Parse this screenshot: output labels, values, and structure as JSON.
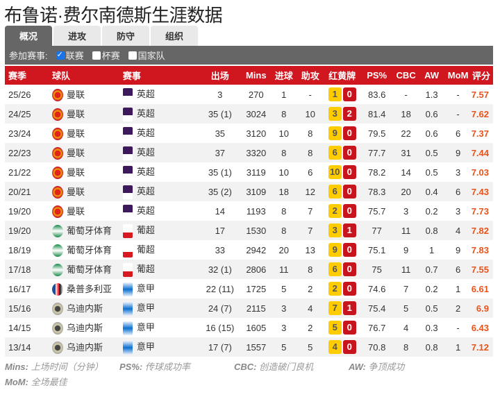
{
  "title": "布鲁诺·费尔南德斯生涯数据",
  "tabs": [
    "概况",
    "进攻",
    "防守",
    "组织"
  ],
  "filter": {
    "label": "参加赛事:",
    "options": [
      {
        "label": "联赛",
        "checked": true
      },
      {
        "label": "杯赛",
        "checked": false
      },
      {
        "label": "国家队",
        "checked": false
      }
    ]
  },
  "columns": [
    "赛季",
    "球队",
    "赛事",
    "出场",
    "Mins",
    "进球",
    "助攻",
    "红黄牌",
    "PS%",
    "CBC",
    "AW",
    "MoM",
    "评分"
  ],
  "colors": {
    "header": "#d0161f",
    "yellow_card": "#ffcc00",
    "red_card": "#c8151d",
    "rating": "#e8531a"
  },
  "rows": [
    {
      "season": "25/26",
      "team": "曼联",
      "team_icon": "man-utd-crest-icon",
      "league": "英超",
      "league_icon": "premier-league-icon",
      "apps": "3",
      "mins": "270",
      "goals": "1",
      "assists": "-",
      "yellow": "1",
      "red": "0",
      "ps": "83.6",
      "cbc": "-",
      "aw": "1.3",
      "mom": "-",
      "rating": "7.57"
    },
    {
      "season": "24/25",
      "team": "曼联",
      "team_icon": "man-utd-crest-icon",
      "league": "英超",
      "league_icon": "premier-league-icon",
      "apps": "35 (1)",
      "mins": "3024",
      "goals": "8",
      "assists": "10",
      "yellow": "3",
      "red": "2",
      "ps": "81.4",
      "cbc": "18",
      "aw": "0.6",
      "mom": "-",
      "rating": "7.62"
    },
    {
      "season": "23/24",
      "team": "曼联",
      "team_icon": "man-utd-crest-icon",
      "league": "英超",
      "league_icon": "premier-league-icon",
      "apps": "35",
      "mins": "3120",
      "goals": "10",
      "assists": "8",
      "yellow": "9",
      "red": "0",
      "ps": "79.5",
      "cbc": "22",
      "aw": "0.6",
      "mom": "6",
      "rating": "7.37"
    },
    {
      "season": "22/23",
      "team": "曼联",
      "team_icon": "man-utd-crest-icon",
      "league": "英超",
      "league_icon": "premier-league-icon",
      "apps": "37",
      "mins": "3320",
      "goals": "8",
      "assists": "8",
      "yellow": "6",
      "red": "0",
      "ps": "77.7",
      "cbc": "31",
      "aw": "0.5",
      "mom": "9",
      "rating": "7.44"
    },
    {
      "season": "21/22",
      "team": "曼联",
      "team_icon": "man-utd-crest-icon",
      "league": "英超",
      "league_icon": "premier-league-icon",
      "apps": "35 (1)",
      "mins": "3119",
      "goals": "10",
      "assists": "6",
      "yellow": "10",
      "red": "0",
      "ps": "78.2",
      "cbc": "14",
      "aw": "0.5",
      "mom": "3",
      "rating": "7.03"
    },
    {
      "season": "20/21",
      "team": "曼联",
      "team_icon": "man-utd-crest-icon",
      "league": "英超",
      "league_icon": "premier-league-icon",
      "apps": "35 (2)",
      "mins": "3109",
      "goals": "18",
      "assists": "12",
      "yellow": "6",
      "red": "0",
      "ps": "78.3",
      "cbc": "20",
      "aw": "0.4",
      "mom": "6",
      "rating": "7.43"
    },
    {
      "season": "19/20",
      "team": "曼联",
      "team_icon": "man-utd-crest-icon",
      "league": "英超",
      "league_icon": "premier-league-icon",
      "apps": "14",
      "mins": "1193",
      "goals": "8",
      "assists": "7",
      "yellow": "2",
      "red": "0",
      "ps": "75.7",
      "cbc": "3",
      "aw": "0.2",
      "mom": "3",
      "rating": "7.73"
    },
    {
      "season": "19/20",
      "team": "葡萄牙体育",
      "team_icon": "sporting-cp-crest-icon",
      "league": "葡超",
      "league_icon": "liga-portugal-icon",
      "apps": "17",
      "mins": "1530",
      "goals": "8",
      "assists": "7",
      "yellow": "3",
      "red": "1",
      "ps": "77",
      "cbc": "11",
      "aw": "0.8",
      "mom": "4",
      "rating": "7.82"
    },
    {
      "season": "18/19",
      "team": "葡萄牙体育",
      "team_icon": "sporting-cp-crest-icon",
      "league": "葡超",
      "league_icon": "liga-portugal-icon",
      "apps": "33",
      "mins": "2942",
      "goals": "20",
      "assists": "13",
      "yellow": "9",
      "red": "0",
      "ps": "75.1",
      "cbc": "9",
      "aw": "1",
      "mom": "9",
      "rating": "7.83"
    },
    {
      "season": "17/18",
      "team": "葡萄牙体育",
      "team_icon": "sporting-cp-crest-icon",
      "league": "葡超",
      "league_icon": "liga-portugal-icon",
      "apps": "32 (1)",
      "mins": "2806",
      "goals": "11",
      "assists": "8",
      "yellow": "6",
      "red": "0",
      "ps": "75",
      "cbc": "11",
      "aw": "0.7",
      "mom": "6",
      "rating": "7.55"
    },
    {
      "season": "16/17",
      "team": "桑普多利亚",
      "team_icon": "sampdoria-crest-icon",
      "league": "意甲",
      "league_icon": "serie-a-icon",
      "apps": "22 (11)",
      "mins": "1725",
      "goals": "5",
      "assists": "2",
      "yellow": "2",
      "red": "0",
      "ps": "74.6",
      "cbc": "7",
      "aw": "0.2",
      "mom": "1",
      "rating": "6.61"
    },
    {
      "season": "15/16",
      "team": "乌迪内斯",
      "team_icon": "udinese-crest-icon",
      "league": "意甲",
      "league_icon": "serie-a-icon",
      "apps": "24 (7)",
      "mins": "2115",
      "goals": "3",
      "assists": "4",
      "yellow": "7",
      "red": "1",
      "ps": "75.4",
      "cbc": "5",
      "aw": "0.5",
      "mom": "2",
      "rating": "6.9"
    },
    {
      "season": "14/15",
      "team": "乌迪内斯",
      "team_icon": "udinese-crest-icon",
      "league": "意甲",
      "league_icon": "serie-a-icon",
      "apps": "16 (15)",
      "mins": "1605",
      "goals": "3",
      "assists": "2",
      "yellow": "5",
      "red": "0",
      "ps": "76.7",
      "cbc": "4",
      "aw": "0.3",
      "mom": "-",
      "rating": "6.43"
    },
    {
      "season": "13/14",
      "team": "乌迪内斯",
      "team_icon": "udinese-crest-icon",
      "league": "意甲",
      "league_icon": "serie-a-icon",
      "apps": "17 (7)",
      "mins": "1557",
      "goals": "5",
      "assists": "5",
      "yellow": "4",
      "red": "0",
      "ps": "70.8",
      "cbc": "8",
      "aw": "0.8",
      "mom": "1",
      "rating": "7.12"
    }
  ],
  "legend": [
    {
      "key": "Mins:",
      "text": "上场时间（分钟）"
    },
    {
      "key": "PS%:",
      "text": "传球成功率"
    },
    {
      "key": "CBC:",
      "text": "创造破门良机"
    },
    {
      "key": "AW:",
      "text": "争顶成功"
    },
    {
      "key": "MoM:",
      "text": "全场最佳"
    }
  ]
}
